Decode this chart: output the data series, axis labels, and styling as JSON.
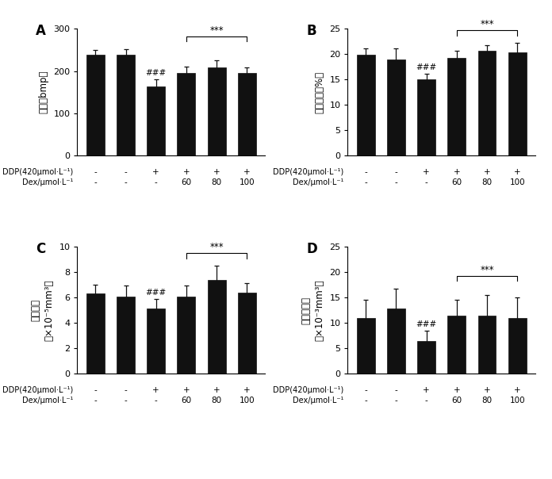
{
  "panels": [
    {
      "label": "A",
      "ylabel_lines": [
        "心率（bmp）"
      ],
      "ylim": [
        0,
        300
      ],
      "yticks": [
        0,
        100,
        200,
        300
      ],
      "values": [
        238,
        238,
        163,
        196,
        208,
        196
      ],
      "errors": [
        12,
        14,
        18,
        15,
        18,
        12
      ],
      "hash_bar": 2,
      "sig_bracket": [
        3,
        5
      ],
      "sig_label": "***",
      "hash_label": "###"
    },
    {
      "label": "B",
      "ylabel_lines": [
        "收缩分数（%）"
      ],
      "ylim": [
        0,
        25
      ],
      "yticks": [
        0,
        5,
        10,
        15,
        20,
        25
      ],
      "values": [
        19.9,
        19.0,
        15.0,
        19.2,
        20.7,
        20.4
      ],
      "errors": [
        1.3,
        2.2,
        1.2,
        1.5,
        1.1,
        1.8
      ],
      "hash_bar": 2,
      "sig_bracket": [
        3,
        5
      ],
      "sig_label": "***",
      "hash_label": "###"
    },
    {
      "label": "C",
      "ylabel_lines": [
        "心室容积",
        "（×10⁻⁵mm³）"
      ],
      "ylim": [
        0,
        10
      ],
      "yticks": [
        0,
        2,
        4,
        6,
        8,
        10
      ],
      "values": [
        6.35,
        6.05,
        5.15,
        6.05,
        7.4,
        6.4
      ],
      "errors": [
        0.65,
        0.9,
        0.75,
        0.9,
        1.1,
        0.75
      ],
      "hash_bar": 2,
      "sig_bracket": [
        3,
        5
      ],
      "sig_label": "***",
      "hash_label": "###"
    },
    {
      "label": "D",
      "ylabel_lines": [
        "心脏输出量",
        "（×10⁻³mm³）"
      ],
      "ylim": [
        0,
        25
      ],
      "yticks": [
        0,
        5,
        10,
        15,
        20,
        25
      ],
      "values": [
        11.0,
        12.8,
        6.5,
        11.5,
        11.5,
        11.0
      ],
      "errors": [
        3.5,
        4.0,
        2.0,
        3.0,
        4.0,
        4.0
      ],
      "hash_bar": 2,
      "sig_bracket": [
        3,
        5
      ],
      "sig_label": "***",
      "hash_label": "###"
    }
  ],
  "bar_color": "#111111",
  "bar_width": 0.6,
  "ddp_row": [
    "-",
    "-",
    "+",
    "+",
    "+",
    "+"
  ],
  "dex_row": [
    "-",
    "-",
    "-",
    "60",
    "80",
    "100"
  ],
  "ddp_label": "DDP(420μmol·L⁻¹)",
  "dex_label": "Dex/μmol·L⁻¹",
  "error_color": "#111111",
  "capsize": 2.5,
  "fontsize_ylabel": 8.5,
  "fontsize_tick": 8,
  "fontsize_panel": 12,
  "fontsize_sig": 8.5,
  "fontsize_row": 7.5,
  "fontsize_rowlabel": 7.0
}
